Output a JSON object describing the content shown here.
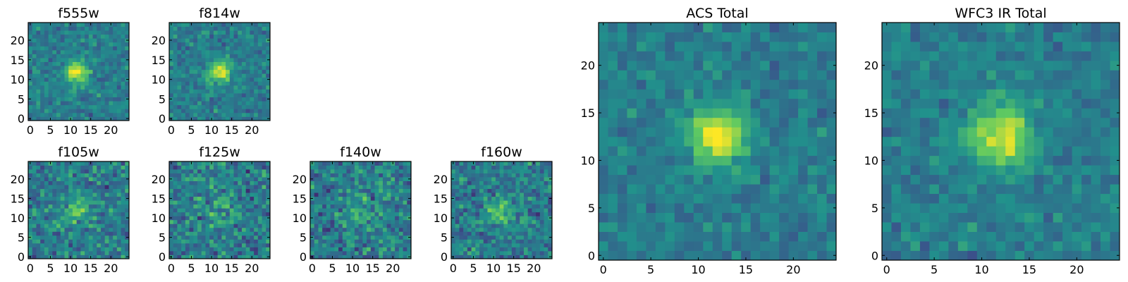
{
  "chart_data": [
    {
      "type": "heatmap",
      "title": "f555w",
      "x": {
        "range": [
          0,
          25
        ],
        "ticks": [
          "0",
          "5",
          "10",
          "15",
          "20"
        ]
      },
      "y": {
        "range": [
          0,
          25
        ],
        "ticks": [
          "0",
          "5",
          "10",
          "15",
          "20"
        ]
      },
      "colormap": "viridis",
      "source_peak": [
        11.5,
        12.0
      ],
      "source_width": 2.0,
      "source_amplitude": 0.55,
      "noise_level": 0.22,
      "seed": 11
    },
    {
      "type": "heatmap",
      "title": "f814w",
      "x": {
        "range": [
          0,
          25
        ],
        "ticks": [
          "0",
          "5",
          "10",
          "15",
          "20"
        ]
      },
      "y": {
        "range": [
          0,
          25
        ],
        "ticks": [
          "0",
          "5",
          "10",
          "15",
          "20"
        ]
      },
      "colormap": "viridis",
      "source_peak": [
        12.0,
        12.0
      ],
      "source_width": 2.0,
      "source_amplitude": 0.5,
      "noise_level": 0.22,
      "seed": 23
    },
    {
      "type": "heatmap",
      "title": "f105w",
      "x": {
        "range": [
          0,
          25
        ],
        "ticks": [
          "0",
          "5",
          "10",
          "15",
          "20"
        ]
      },
      "y": {
        "range": [
          0,
          25
        ],
        "ticks": [
          "0",
          "5",
          "10",
          "15",
          "20"
        ]
      },
      "colormap": "viridis",
      "source_peak": [
        11.5,
        12.5
      ],
      "source_width": 2.6,
      "source_amplitude": 0.25,
      "noise_level": 0.32,
      "seed": 37
    },
    {
      "type": "heatmap",
      "title": "f125w",
      "x": {
        "range": [
          0,
          25
        ],
        "ticks": [
          "0",
          "5",
          "10",
          "15",
          "20"
        ]
      },
      "y": {
        "range": [
          0,
          25
        ],
        "ticks": [
          "0",
          "5",
          "10",
          "15",
          "20"
        ]
      },
      "colormap": "viridis",
      "source_peak": [
        12.0,
        12.0
      ],
      "source_width": 2.6,
      "source_amplitude": 0.15,
      "noise_level": 0.34,
      "seed": 41
    },
    {
      "type": "heatmap",
      "title": "f140w",
      "x": {
        "range": [
          0,
          25
        ],
        "ticks": [
          "0",
          "5",
          "10",
          "15",
          "20"
        ]
      },
      "y": {
        "range": [
          0,
          25
        ],
        "ticks": [
          "0",
          "5",
          "10",
          "15",
          "20"
        ]
      },
      "colormap": "viridis",
      "source_peak": [
        12.0,
        11.5
      ],
      "source_width": 2.6,
      "source_amplitude": 0.2,
      "noise_level": 0.34,
      "seed": 53
    },
    {
      "type": "heatmap",
      "title": "f160w",
      "x": {
        "range": [
          0,
          25
        ],
        "ticks": [
          "0",
          "5",
          "10",
          "15",
          "20"
        ]
      },
      "y": {
        "range": [
          0,
          25
        ],
        "ticks": [
          "0",
          "5",
          "10",
          "15",
          "20"
        ]
      },
      "colormap": "viridis",
      "source_peak": [
        11.5,
        12.0
      ],
      "source_width": 2.2,
      "source_amplitude": 0.35,
      "noise_level": 0.3,
      "seed": 67
    },
    {
      "type": "heatmap",
      "title": "ACS Total",
      "x": {
        "range": [
          0,
          25
        ],
        "ticks": [
          "0",
          "5",
          "10",
          "15",
          "20"
        ]
      },
      "y": {
        "range": [
          0,
          25
        ],
        "ticks": [
          "0",
          "5",
          "10",
          "15",
          "20"
        ]
      },
      "colormap": "viridis",
      "source_peak": [
        12.0,
        12.5
      ],
      "source_width": 2.0,
      "source_amplitude": 0.6,
      "noise_level": 0.18,
      "seed": 79
    },
    {
      "type": "heatmap",
      "title": "WFC3 IR Total",
      "x": {
        "range": [
          0,
          25
        ],
        "ticks": [
          "0",
          "5",
          "10",
          "15",
          "20"
        ]
      },
      "y": {
        "range": [
          0,
          25
        ],
        "ticks": [
          "0",
          "5",
          "10",
          "15",
          "20"
        ]
      },
      "colormap": "viridis",
      "source_peak": [
        12.0,
        12.5
      ],
      "source_width": 2.2,
      "source_amplitude": 0.55,
      "noise_level": 0.18,
      "seed": 97
    }
  ]
}
